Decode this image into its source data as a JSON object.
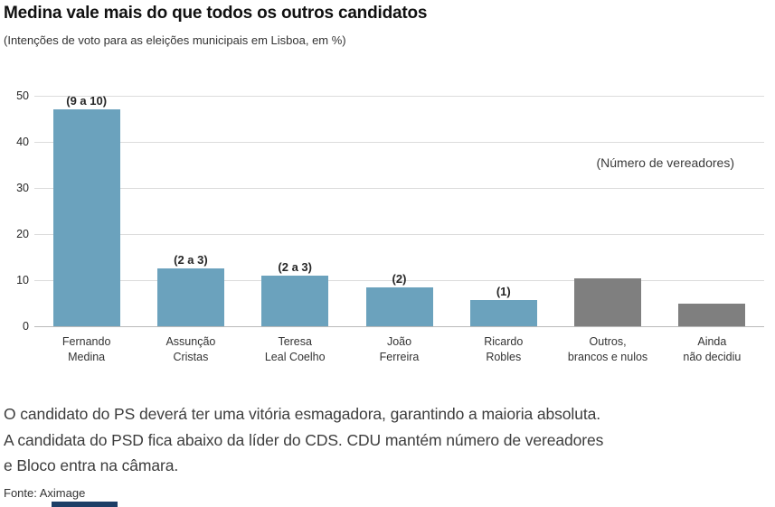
{
  "header": {
    "title": "Medina vale mais do que todos os outros candidatos",
    "subtitle": "(Intenções de voto para as eleições municipais em Lisboa, em %)"
  },
  "chart_data": {
    "type": "bar",
    "title": "Medina vale mais do que todos os outros candidatos",
    "subtitle": "(Intenções de voto para as eleições municipais em Lisboa, em %)",
    "categories": [
      "Fernando\nMedina",
      "Assunção\nCristas",
      "Teresa\nLeal Coelho",
      "João\nFerreira",
      "Ricardo\nRobles",
      "Outros,\nbrancos e nulos",
      "Ainda\nnão decidiu"
    ],
    "values": [
      47,
      12.6,
      11,
      8.5,
      5.6,
      10.4,
      5
    ],
    "bar_labels": [
      "(9 a 10)",
      "(2 a 3)",
      "(2 a 3)",
      "(2)",
      "(1)",
      "",
      ""
    ],
    "bar_colors": [
      "#6BA2BD",
      "#6BA2BD",
      "#6BA2BD",
      "#6BA2BD",
      "#6BA2BD",
      "#7F7F7F",
      "#7F7F7F"
    ],
    "annotation": "(Número de vereadores)",
    "xlabel": "",
    "ylabel": "",
    "ylim": [
      0,
      50
    ],
    "yticks": [
      0,
      10,
      20,
      30,
      40,
      50
    ],
    "grid": true,
    "legend": "none"
  },
  "footnote": {
    "body": "O candidato do PS deverá ter uma vitória esmagadora, garantindo a maioria absoluta.\nA candidata do PSD fica abaixo da líder do CDS. CDU mantém número de vereadores\ne Bloco entra na câmara.",
    "source": "Fonte: Aximage"
  },
  "colors": {
    "bar_blue": "#6BA2BD",
    "bar_gray": "#7F7F7F",
    "gridline": "#dcdcdc",
    "footer_bar": "#1C3E66"
  }
}
